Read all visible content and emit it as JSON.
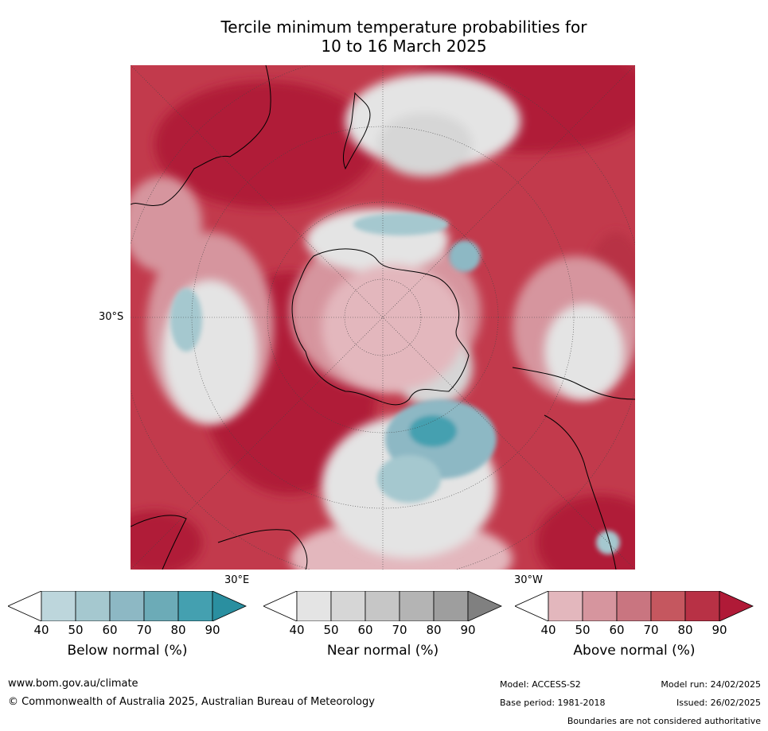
{
  "title_line1": "Tercile minimum temperature probabilities for",
  "title_line2": "10 to 16 March 2025",
  "map_labels": {
    "lat_30s": "30°S",
    "lon_30e": "30°E",
    "lon_30w": "30°W"
  },
  "colorbars": [
    {
      "label": "Below normal (%)",
      "ticks": [
        "40",
        "50",
        "60",
        "70",
        "80",
        "90"
      ],
      "colors": [
        "#ffffff",
        "#bdd6dc",
        "#a5c8cf",
        "#8db8c4",
        "#6cabb7",
        "#44a0b0",
        "#2a8fa0"
      ]
    },
    {
      "label": "Near normal (%)",
      "ticks": [
        "40",
        "50",
        "60",
        "70",
        "80",
        "90"
      ],
      "colors": [
        "#ffffff",
        "#e4e4e4",
        "#d6d6d6",
        "#c6c6c6",
        "#b4b4b4",
        "#9e9e9e",
        "#808080"
      ]
    },
    {
      "label": "Above normal (%)",
      "ticks": [
        "40",
        "50",
        "60",
        "70",
        "80",
        "90"
      ],
      "colors": [
        "#ffffff",
        "#e3b7bd",
        "#d6959e",
        "#c97580",
        "#c5575f",
        "#b83145",
        "#b01a37"
      ]
    }
  ],
  "footer": {
    "website": "www.bom.gov.au/climate",
    "copyright": "© Commonwealth of Australia 2025, Australian Bureau of Meteorology",
    "model": "Model: ACCESS-S2",
    "base_period": "Base period: 1981-2018",
    "model_run": "Model run: 24/02/2025",
    "issued": "Issued: 26/02/2025",
    "disclaimer": "Boundaries are not considered authoritative"
  }
}
